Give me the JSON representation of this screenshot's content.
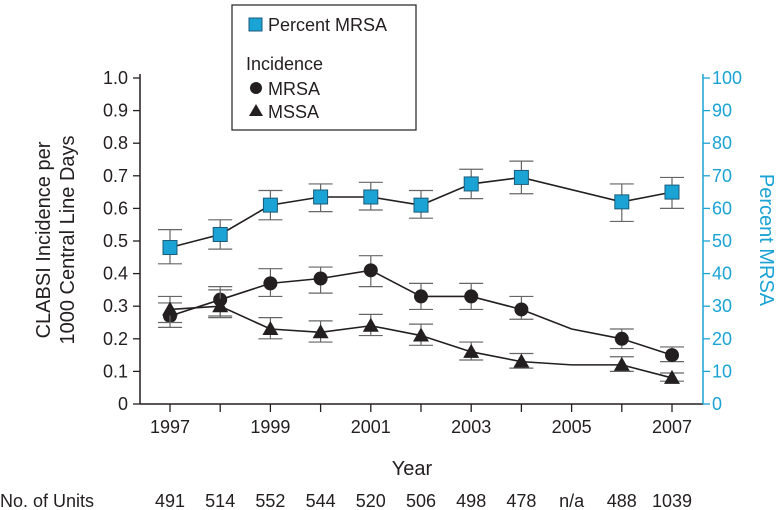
{
  "chart_data": {
    "type": "line",
    "xlabel": "Year",
    "ylabel_left": [
      "CLABSI Incidence per",
      "1000 Central Line Days"
    ],
    "ylabel_right": "Percent MRSA",
    "ylim_left": [
      0,
      1.0
    ],
    "ylim_right": [
      0,
      100
    ],
    "left_ticks": [
      "0",
      "0.1",
      "0.2",
      "0.3",
      "0.4",
      "0.5",
      "0.6",
      "0.7",
      "0.8",
      "0.9",
      "1.0"
    ],
    "right_ticks": [
      "0",
      "10",
      "20",
      "30",
      "40",
      "50",
      "60",
      "70",
      "80",
      "90",
      "100"
    ],
    "x_tick_labels": [
      "1997",
      "1999",
      "2001",
      "2003",
      "2005",
      "2007"
    ],
    "x": [
      1997,
      1998,
      1999,
      2000,
      2001,
      2002,
      2003,
      2004,
      2005,
      2006,
      2007
    ],
    "legend": {
      "percent_label": "Percent MRSA",
      "incidence_heading": "Incidence",
      "mrsa_label": "MRSA",
      "mssa_label": "MSSA",
      "placement": "top-left"
    },
    "series": [
      {
        "name": "Percent MRSA",
        "axis": "right",
        "marker": "square",
        "color": "#1aa3d4",
        "values": [
          48,
          52,
          61,
          63.5,
          63.5,
          61,
          67.5,
          69.5,
          null,
          62,
          65
        ],
        "err_low": [
          43,
          47.5,
          56.5,
          59,
          59.5,
          57,
          63,
          64.5,
          null,
          56,
          60
        ],
        "err_high": [
          53.5,
          56.5,
          65.5,
          67.5,
          68,
          65.5,
          72,
          74.5,
          null,
          67.5,
          69.5
        ],
        "line_values": [
          48,
          52,
          61,
          63.5,
          63.5,
          61,
          67.5,
          69.5,
          null,
          62,
          65
        ]
      },
      {
        "name": "MRSA",
        "axis": "left",
        "marker": "circle",
        "color": "#231f20",
        "values": [
          0.27,
          0.32,
          0.37,
          0.385,
          0.41,
          0.33,
          0.33,
          0.29,
          null,
          0.2,
          0.15
        ],
        "err_low": [
          0.235,
          0.27,
          0.33,
          0.34,
          0.36,
          0.29,
          0.29,
          0.26,
          null,
          0.17,
          0.13
        ],
        "err_high": [
          0.31,
          0.36,
          0.415,
          0.42,
          0.455,
          0.37,
          0.37,
          0.33,
          null,
          0.23,
          0.175
        ],
        "line_values": [
          0.27,
          0.32,
          0.37,
          0.385,
          0.41,
          0.33,
          0.33,
          0.29,
          0.23,
          0.2,
          0.15
        ]
      },
      {
        "name": "MSSA",
        "axis": "left",
        "marker": "triangle",
        "color": "#231f20",
        "values": [
          0.29,
          0.3,
          0.23,
          0.22,
          0.24,
          0.21,
          0.16,
          0.13,
          null,
          0.12,
          0.08
        ],
        "err_low": [
          0.25,
          0.265,
          0.2,
          0.19,
          0.21,
          0.18,
          0.135,
          0.11,
          null,
          0.1,
          0.07
        ],
        "err_high": [
          0.33,
          0.35,
          0.265,
          0.255,
          0.275,
          0.245,
          0.19,
          0.155,
          null,
          0.145,
          0.095
        ],
        "line_values": [
          0.29,
          0.3,
          0.23,
          0.22,
          0.24,
          0.21,
          0.16,
          0.13,
          0.12,
          0.12,
          0.08
        ]
      }
    ],
    "units_row": {
      "label": "No. of Units",
      "values": [
        "491",
        "514",
        "552",
        "544",
        "520",
        "506",
        "498",
        "478",
        "n/a",
        "488",
        "1039"
      ]
    }
  }
}
